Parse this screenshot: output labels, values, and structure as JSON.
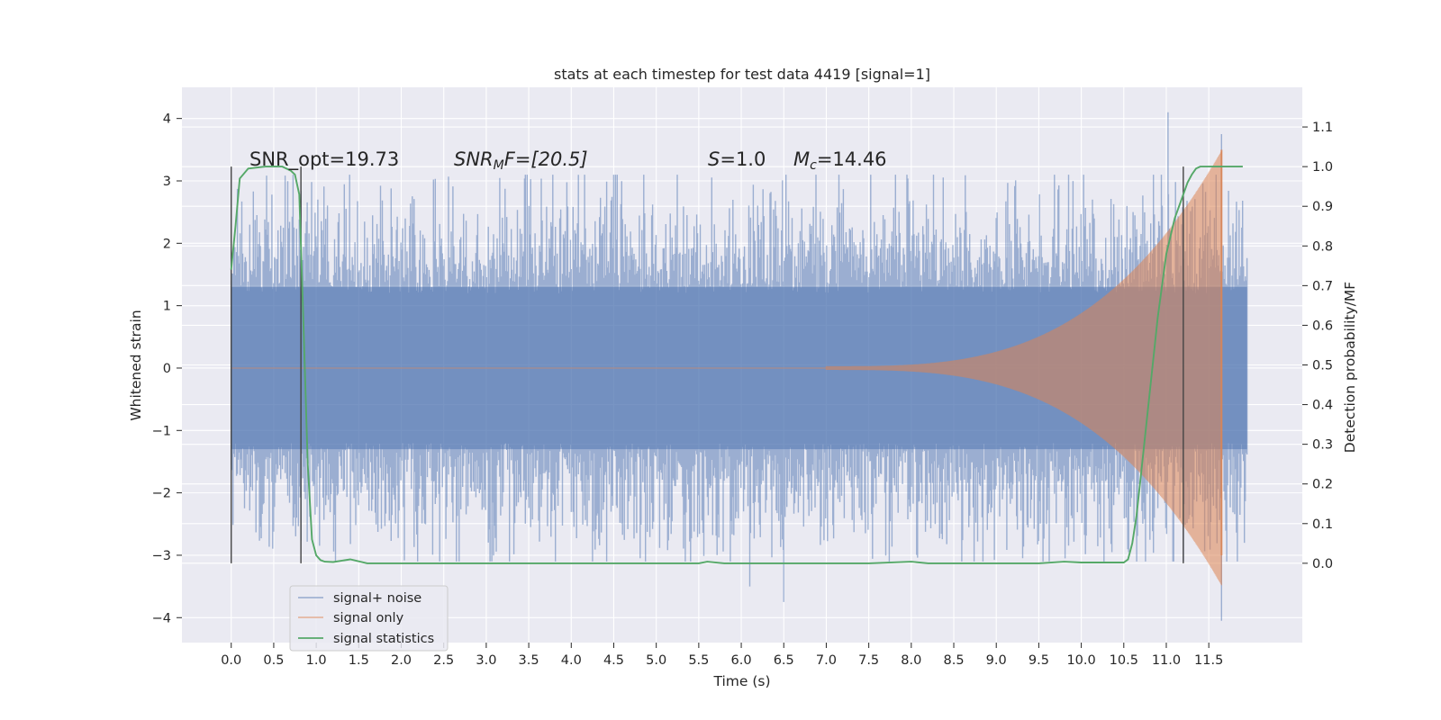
{
  "chart_data": {
    "type": "line",
    "title": "stats at each timestep for test data 4419 [signal=1]",
    "xlabel": "Time (s)",
    "ylabel": "Whitened strain",
    "ylabel_right": "Detection probability/MF",
    "xlim": [
      -0.58,
      12.6
    ],
    "ylim": [
      -4.4,
      4.5
    ],
    "ylim_right": [
      -0.2,
      1.2
    ],
    "x_ticks": [
      "0.0",
      "0.5",
      "1.0",
      "1.5",
      "2.0",
      "2.5",
      "3.0",
      "3.5",
      "4.0",
      "4.5",
      "5.0",
      "5.5",
      "6.0",
      "6.5",
      "7.0",
      "7.5",
      "8.0",
      "8.5",
      "9.0",
      "9.5",
      "10.0",
      "10.5",
      "11.0",
      "11.5"
    ],
    "y_ticks": [
      "4",
      "3",
      "2",
      "1",
      "0",
      "−1",
      "−2",
      "−3",
      "−4"
    ],
    "y_right_ticks": [
      "1.1",
      "1.0",
      "0.9",
      "0.8",
      "0.7",
      "0.6",
      "0.5",
      "0.4",
      "0.3",
      "0.2",
      "0.1",
      "0.0"
    ],
    "grid": true,
    "legend_position": "lower-left",
    "annotations": {
      "snr_opt": "SNR_opt=19.73",
      "snr_mf_sym": "SNR",
      "snr_mf_sub": "M",
      "snr_mf_rest": "F=[20.5]",
      "s_sym": "S",
      "s_rest": "=1.0",
      "mc_sym": "M",
      "mc_sub": "c",
      "mc_rest": "=14.46"
    },
    "vertical_lines_x": [
      0.0,
      0.82,
      11.2
    ],
    "series": [
      {
        "name": "signal+ noise",
        "color": "#4c72b0",
        "description_range": [
          0.0,
          11.95
        ],
        "typical_envelope": 2.0,
        "peak_values": [
          [
            11.02,
            4.1
          ],
          [
            11.65,
            3.75
          ],
          [
            11.65,
            -4.05
          ],
          [
            6.5,
            -3.75
          ],
          [
            6.1,
            -3.5
          ]
        ]
      },
      {
        "name": "signal only",
        "color": "#dd8452",
        "chirp_start": 7.0,
        "chirp_end": 11.65,
        "final_amplitude": 3.45
      },
      {
        "name": "signal statistics",
        "color": "#55a868",
        "axis": "right",
        "x": [
          0.0,
          0.05,
          0.1,
          0.2,
          0.4,
          0.6,
          0.7,
          0.75,
          0.8,
          0.85,
          0.9,
          0.95,
          1.0,
          1.05,
          1.1,
          1.2,
          1.4,
          1.6,
          2.0,
          3.0,
          4.0,
          5.0,
          5.5,
          5.6,
          5.8,
          6.0,
          7.0,
          7.5,
          8.0,
          8.2,
          8.5,
          9.0,
          9.5,
          9.8,
          10.0,
          10.5,
          10.55,
          10.6,
          10.65,
          10.7,
          10.8,
          10.9,
          11.0,
          11.1,
          11.2,
          11.25,
          11.3,
          11.35,
          11.4,
          11.5,
          11.9
        ],
        "y": [
          0.74,
          0.85,
          0.97,
          0.995,
          1.0,
          1.0,
          0.99,
          0.98,
          0.93,
          0.6,
          0.25,
          0.06,
          0.02,
          0.008,
          0.004,
          0.003,
          0.01,
          0.0,
          0.0,
          0.0,
          0.0,
          0.0,
          0.0,
          0.004,
          0.0,
          0.0,
          0.0,
          0.0,
          0.004,
          0.0,
          0.0,
          0.0,
          0.0,
          0.004,
          0.002,
          0.002,
          0.01,
          0.05,
          0.12,
          0.22,
          0.42,
          0.62,
          0.78,
          0.87,
          0.93,
          0.96,
          0.98,
          0.995,
          1.0,
          1.0,
          1.0
        ]
      }
    ]
  }
}
